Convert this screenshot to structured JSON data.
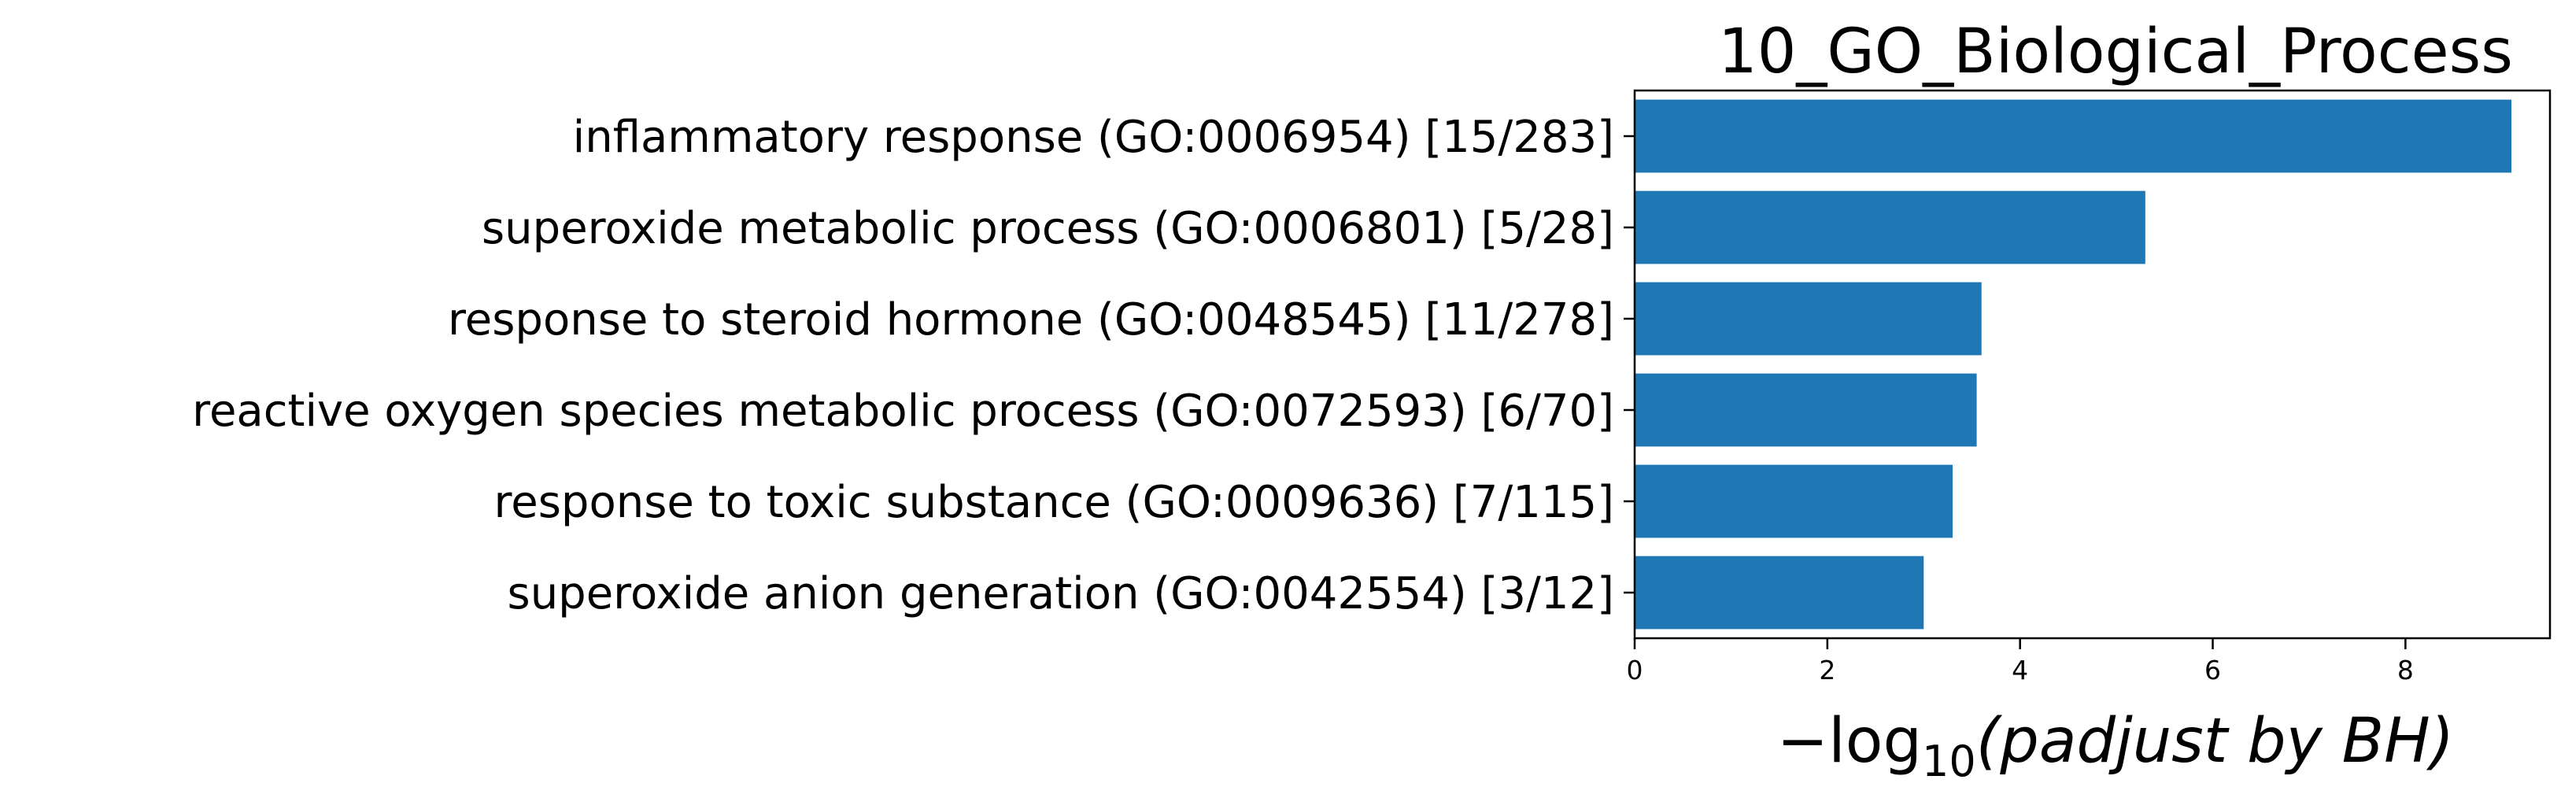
{
  "chart_data": {
    "type": "bar",
    "orientation": "horizontal",
    "title": "10_GO_Biological_Process",
    "xlabel": {
      "prefix": "−log",
      "subscript": "10",
      "body": "(padjust by BH)"
    },
    "ylabel": "",
    "xlim": [
      0,
      9.5
    ],
    "xticks": [
      0,
      2,
      4,
      6,
      8
    ],
    "grid": false,
    "legend": "none",
    "bar_color": "#1f77b4",
    "categories": [
      "inflammatory response (GO:0006954) [15/283]",
      "superoxide metabolic process (GO:0006801) [5/28]",
      "response to steroid hormone (GO:0048545) [11/278]",
      "reactive oxygen species metabolic process (GO:0072593) [6/70]",
      "response to toxic substance (GO:0009636) [7/115]",
      "superoxide anion generation (GO:0042554) [3/12]"
    ],
    "values": [
      9.1,
      5.3,
      3.6,
      3.55,
      3.3,
      3.0
    ]
  }
}
